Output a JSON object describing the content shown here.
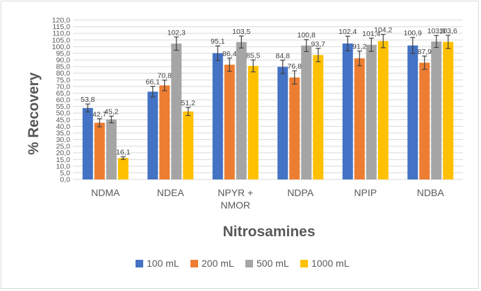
{
  "chart_data": {
    "type": "bar",
    "title": "",
    "ylabel": "% Recovery",
    "xlabel": "Nitrosamines",
    "ylim": [
      0,
      120
    ],
    "ytick_step": 5,
    "grid": true,
    "legend_position": "bottom",
    "categories": [
      [
        "NDMA"
      ],
      [
        "NDEA"
      ],
      [
        "NPYR +",
        "NMOR"
      ],
      [
        "NDPA"
      ],
      [
        "NPIP"
      ],
      [
        "NDBA"
      ]
    ],
    "series": [
      {
        "name": "100 mL",
        "color": "#4472c4",
        "values": [
          53.8,
          66.1,
          95.1,
          84.8,
          102.4,
          100.9
        ],
        "labels": [
          "53,8",
          "66,1",
          "95,1",
          "84,8",
          "102,4",
          "100,9"
        ],
        "errors": [
          3.0,
          4.0,
          5.5,
          5.0,
          5.5,
          6.0
        ]
      },
      {
        "name": "200 mL",
        "color": "#ed7d31",
        "values": [
          42.7,
          70.8,
          86.4,
          76.8,
          91.2,
          87.9
        ],
        "labels": [
          "42,7",
          "70,8",
          "86,4",
          "76,8",
          "91,2",
          "87,9"
        ],
        "errors": [
          3.0,
          4.0,
          5.0,
          5.0,
          5.5,
          5.0
        ]
      },
      {
        "name": "500 mL",
        "color": "#a5a5a5",
        "values": [
          45.2,
          102.3,
          103.5,
          100.8,
          101.4,
          103.9
        ],
        "labels": [
          "45,2",
          "102,3",
          "103,5",
          "100,8",
          "101,4",
          "103,9"
        ],
        "errors": [
          2.5,
          5.0,
          4.5,
          4.5,
          5.0,
          4.5
        ]
      },
      {
        "name": "1000 mL",
        "color": "#ffc000",
        "values": [
          16.1,
          51.2,
          85.5,
          93.7,
          104.2,
          103.6
        ],
        "labels": [
          "16,1",
          "51,2",
          "85,5",
          "93,7",
          "104,2",
          "103,6"
        ],
        "errors": [
          1.0,
          3.0,
          4.5,
          5.0,
          5.0,
          5.0
        ]
      }
    ]
  }
}
